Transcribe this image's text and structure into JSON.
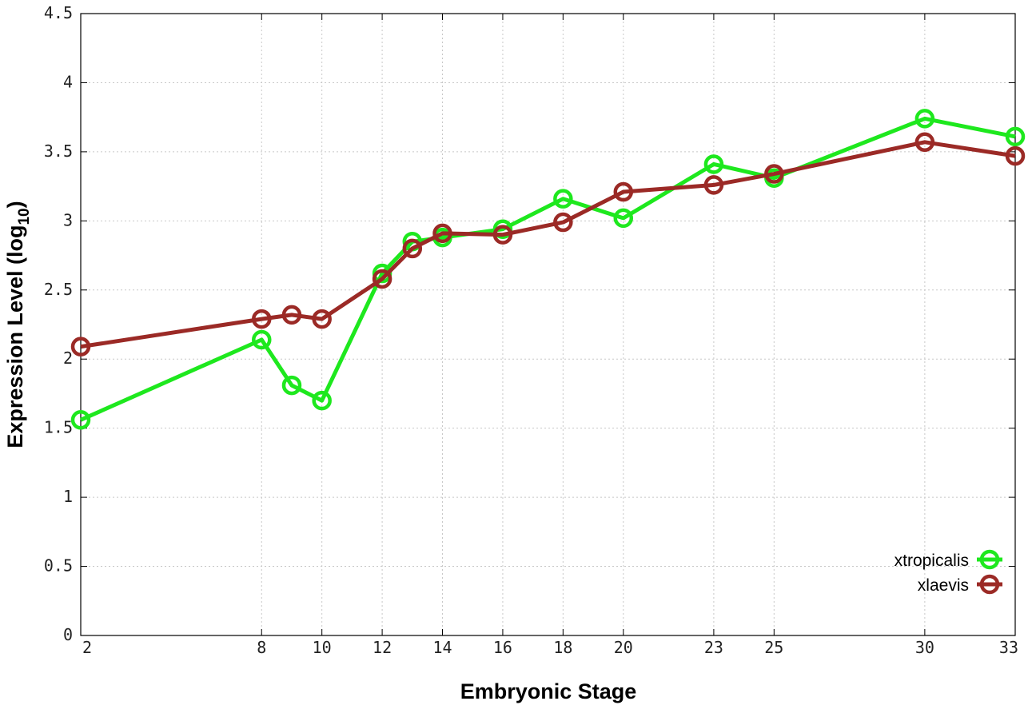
{
  "chart_data": {
    "type": "line",
    "xlabel": "Embryonic Stage",
    "ylabel_main": "Expression Level (log",
    "ylabel_sub": "10",
    "ylabel_close": ")",
    "xlim": [
      2,
      33
    ],
    "ylim": [
      0,
      4.5
    ],
    "x_ticks": [
      2,
      8,
      10,
      12,
      14,
      16,
      18,
      20,
      23,
      25,
      30,
      33
    ],
    "y_ticks": [
      0,
      0.5,
      1,
      1.5,
      2,
      2.5,
      3,
      3.5,
      4,
      4.5
    ],
    "y_tick_labels": [
      "0",
      "0.5",
      "1",
      "1.5",
      "2",
      "2.5",
      "3",
      "3.5",
      "4",
      "4.5"
    ],
    "grid": true,
    "legend_position": "bottom-right",
    "x": [
      2,
      8,
      9,
      10,
      12,
      13,
      14,
      16,
      18,
      20,
      23,
      25,
      30,
      33
    ],
    "series": [
      {
        "name": "xtropicalis",
        "color": "#1ee81e",
        "values": [
          1.56,
          2.14,
          1.81,
          1.7,
          2.62,
          2.85,
          2.88,
          2.94,
          3.16,
          3.02,
          3.41,
          3.31,
          3.74,
          3.61
        ]
      },
      {
        "name": "xlaevis",
        "color": "#9b2a26",
        "values": [
          2.09,
          2.29,
          2.32,
          2.29,
          2.58,
          2.8,
          2.91,
          2.9,
          2.99,
          3.21,
          3.26,
          3.34,
          3.57,
          3.47
        ]
      }
    ]
  }
}
